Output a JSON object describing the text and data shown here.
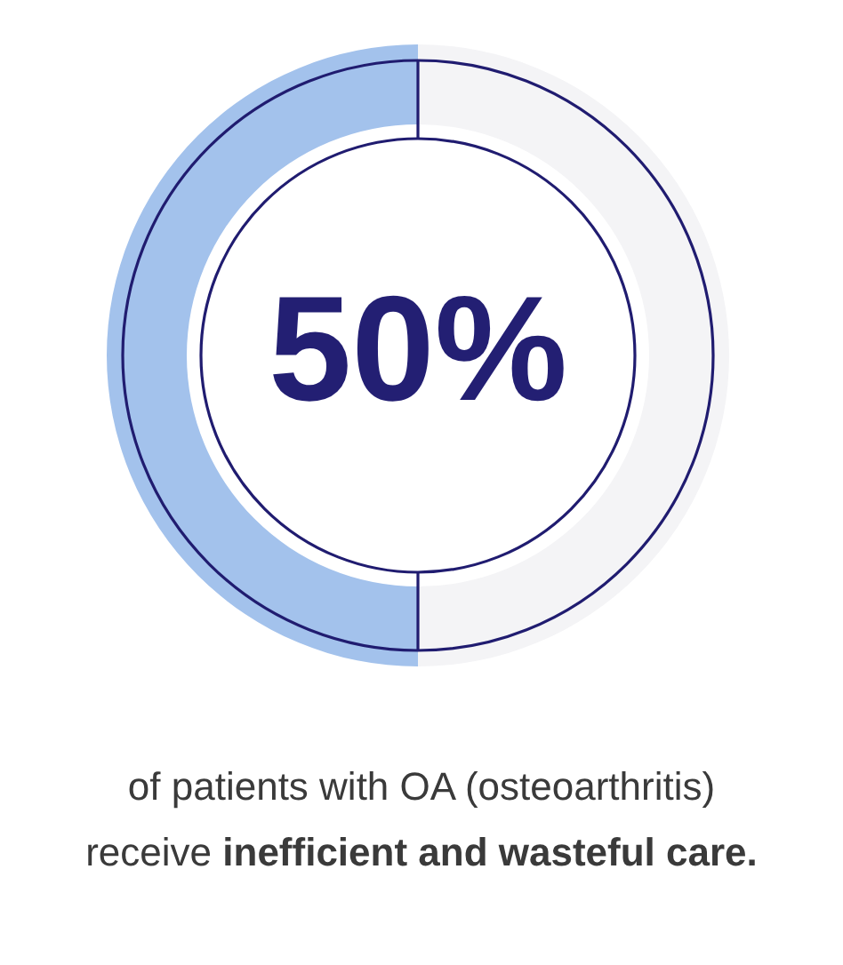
{
  "chart_data": {
    "type": "donut",
    "categories": [
      null,
      null
    ],
    "values": [
      50,
      50
    ],
    "colors": [
      "#f4f4f6",
      "#a3c2ec"
    ],
    "value_labels": [
      null,
      "50%"
    ],
    "annotations": [
      "of patients with OA (osteoarthritis)",
      "receive",
      "inefficient and wasteful care."
    ]
  }
}
